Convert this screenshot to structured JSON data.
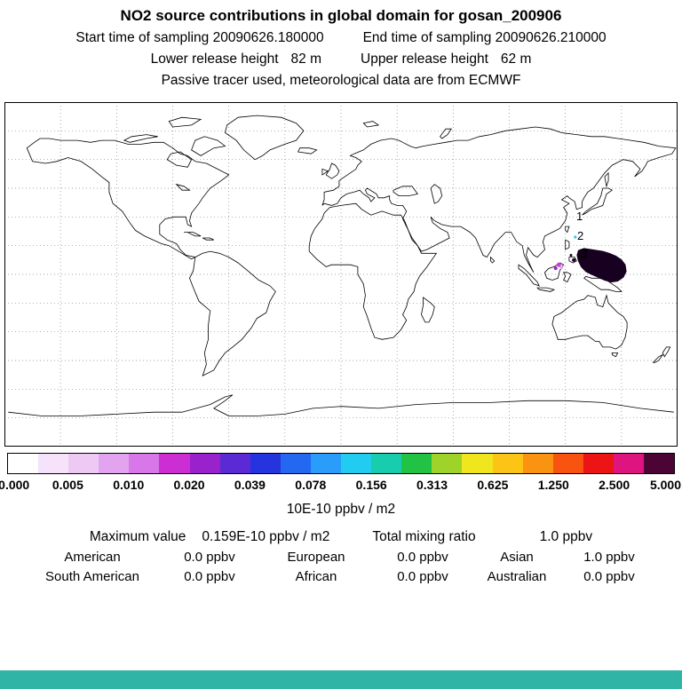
{
  "header": {
    "title": "NO2 source contributions in global domain for gosan_200906",
    "start_time": "Start time of sampling 20090626.180000",
    "end_time": "End time of sampling 20090626.210000",
    "lower_release_label": "Lower release height",
    "lower_release_value": "82 m",
    "upper_release_label": "Upper release height",
    "upper_release_value": "62 m",
    "note": "Passive tracer used, meteorological data are from ECMWF"
  },
  "map": {
    "markers": [
      {
        "label": "1"
      },
      {
        "label": "2"
      },
      {
        "label": "3"
      }
    ]
  },
  "colorbar": {
    "tick_labels": [
      "0.000",
      "0.005",
      "0.010",
      "0.020",
      "0.039",
      "0.078",
      "0.156",
      "0.313",
      "0.625",
      "1.250",
      "2.500",
      "5.000"
    ],
    "unit": "10E-10 ppbv / m2",
    "segment_colors": [
      "#ffffff",
      "#f6e2fa",
      "#eec9f4",
      "#e2a4ee",
      "#d878e8",
      "#cc2ed4",
      "#9922cc",
      "#5c2ad4",
      "#2634e0",
      "#2468f2",
      "#2a9cfa",
      "#22ccf0",
      "#18ccae",
      "#22c244",
      "#9ed42a",
      "#f0e61e",
      "#fcc414",
      "#fa9212",
      "#f85410",
      "#ec1414",
      "#e0147e",
      "#4c0434"
    ]
  },
  "stats": {
    "max_label": "Maximum value",
    "max_value": "0.159E-10 ppbv / m2",
    "total_label": "Total mixing ratio",
    "total_value": "1.0 ppbv",
    "regions": [
      {
        "label": "American",
        "value": "0.0 ppbv"
      },
      {
        "label": "European",
        "value": "0.0 ppbv"
      },
      {
        "label": "Asian",
        "value": "1.0 ppbv"
      },
      {
        "label": "South American",
        "value": "0.0 ppbv"
      },
      {
        "label": "African",
        "value": "0.0 ppbv"
      },
      {
        "label": "Australian",
        "value": "0.0 ppbv"
      }
    ]
  },
  "colors": {
    "bottom_bar": "#2fb4a6",
    "plume": "#180120",
    "spot_magenta": "#cf3fd8",
    "spot_violet": "#9a22cc",
    "spot_lilac": "#e2a4ee",
    "spot_cyan": "#22ccf0",
    "grid": "#888888",
    "coast": "#000000"
  },
  "chart_data": {
    "type": "heatmap",
    "title": "NO2 source contributions in global domain for gosan_200906",
    "subtitle": "Passive tracer used, meteorological data are from ECMWF",
    "sampling": {
      "start": "20090626.180000",
      "end": "20090626.210000"
    },
    "release_heights": {
      "lower": "82 m",
      "upper": "62 m"
    },
    "projection": "equirectangular world map, lon -180..180, lat -90..90",
    "grid": "dotted graticule, 30 deg longitude x 15 deg latitude",
    "colorbar_levels": [
      0.0,
      0.005,
      0.01,
      0.02,
      0.039,
      0.078,
      0.156,
      0.313,
      0.625,
      1.25,
      2.5,
      5.0
    ],
    "colorbar_unit": "10E-10 ppbv / m2",
    "maximum_value": "0.159E-10 ppbv / m2",
    "total_mixing_ratio_ppbv": 1.0,
    "source_contributions_ppbv": {
      "American": 0.0,
      "European": 0.0,
      "Asian": 1.0,
      "South American": 0.0,
      "African": 0.0,
      "Australian": 0.0
    },
    "hotspot": "dark high-value plume over the western Pacific east of the Philippines (approx 127E-152E, 4S-13N), numbered markers 1,2,3 descending from ~30N to ~11N near 126-129E, small magenta/violet traces near Borneo and a cyan speck near marker 2"
  }
}
